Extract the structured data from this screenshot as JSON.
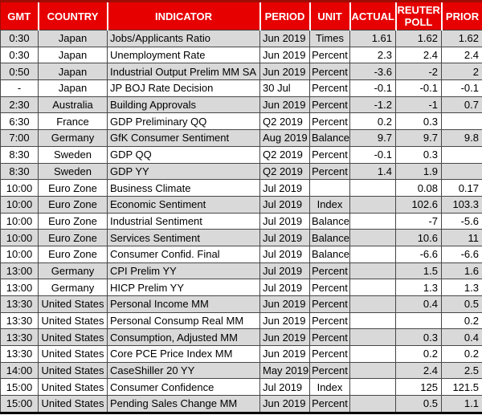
{
  "colors": {
    "header_bg": "#e60000",
    "header_text": "#ffffff",
    "row_stripe": "#d9d9d9",
    "row_bg": "#ffffff",
    "grid": "#474747",
    "outer_bottom": "#000000"
  },
  "chart_data": {
    "type": "table",
    "title": "",
    "columns": [
      "GMT",
      "COUNTRY",
      "INDICATOR",
      "PERIOD",
      "UNIT",
      "ACTUAL",
      "REUTERS POLL",
      "PRIOR"
    ],
    "rows": [
      [
        "0:30",
        "Japan",
        "Jobs/Applicants Ratio",
        "Jun 2019",
        "Times",
        "1.61",
        "1.62",
        "1.62"
      ],
      [
        "0:30",
        "Japan",
        "Unemployment Rate",
        "Jun 2019",
        "Percent",
        "2.3",
        "2.4",
        "2.4"
      ],
      [
        "0:50",
        "Japan",
        "Industrial Output Prelim MM SA",
        "Jun 2019",
        "Percent",
        "-3.6",
        "-2",
        "2"
      ],
      [
        "-",
        "Japan",
        "JP BOJ Rate Decision",
        "30 Jul",
        "Percent",
        "-0.1",
        "-0.1",
        "-0.1"
      ],
      [
        "2:30",
        "Australia",
        "Building Approvals",
        "Jun 2019",
        "Percent",
        "-1.2",
        "-1",
        "0.7"
      ],
      [
        "6:30",
        "France",
        "GDP Preliminary QQ",
        "Q2 2019",
        "Percent",
        "0.2",
        "0.3",
        ""
      ],
      [
        "7:00",
        "Germany",
        "GfK Consumer Sentiment",
        "Aug 2019",
        "Balance",
        "9.7",
        "9.7",
        "9.8"
      ],
      [
        "8:30",
        "Sweden",
        "GDP QQ",
        "Q2 2019",
        "Percent",
        "-0.1",
        "0.3",
        ""
      ],
      [
        "8:30",
        "Sweden",
        "GDP YY",
        "Q2 2019",
        "Percent",
        "1.4",
        "1.9",
        ""
      ],
      [
        "10:00",
        "Euro Zone",
        "Business Climate",
        "Jul 2019",
        "",
        "",
        "0.08",
        "0.17"
      ],
      [
        "10:00",
        "Euro Zone",
        "Economic Sentiment",
        "Jul 2019",
        "Index",
        "",
        "102.6",
        "103.3"
      ],
      [
        "10:00",
        "Euro Zone",
        "Industrial Sentiment",
        "Jul 2019",
        "Balance",
        "",
        "-7",
        "-5.6"
      ],
      [
        "10:00",
        "Euro Zone",
        "Services Sentiment",
        "Jul 2019",
        "Balance",
        "",
        "10.6",
        "11"
      ],
      [
        "10:00",
        "Euro Zone",
        "Consumer Confid. Final",
        "Jul 2019",
        "Balance",
        "",
        "-6.6",
        "-6.6"
      ],
      [
        "13:00",
        "Germany",
        "CPI Prelim YY",
        "Jul 2019",
        "Percent",
        "",
        "1.5",
        "1.6"
      ],
      [
        "13:00",
        "Germany",
        "HICP Prelim YY",
        "Jul 2019",
        "Percent",
        "",
        "1.3",
        "1.3"
      ],
      [
        "13:30",
        "United States",
        "Personal Income MM",
        "Jun 2019",
        "Percent",
        "",
        "0.4",
        "0.5"
      ],
      [
        "13:30",
        "United States",
        "Personal Consump Real MM",
        "Jun 2019",
        "Percent",
        "",
        "",
        "0.2"
      ],
      [
        "13:30",
        "United States",
        "Consumption, Adjusted MM",
        "Jun 2019",
        "Percent",
        "",
        "0.3",
        "0.4"
      ],
      [
        "13:30",
        "United States",
        "Core PCE Price Index MM",
        "Jun 2019",
        "Percent",
        "",
        "0.2",
        "0.2"
      ],
      [
        "14:00",
        "United States",
        "CaseShiller 20 YY",
        "May 2019",
        "Percent",
        "",
        "2.4",
        "2.5"
      ],
      [
        "15:00",
        "United States",
        "Consumer Confidence",
        "Jul 2019",
        "Index",
        "",
        "125",
        "121.5"
      ],
      [
        "15:00",
        "United States",
        "Pending Sales Change MM",
        "Jun 2019",
        "Percent",
        "",
        "0.5",
        "1.1"
      ]
    ]
  }
}
